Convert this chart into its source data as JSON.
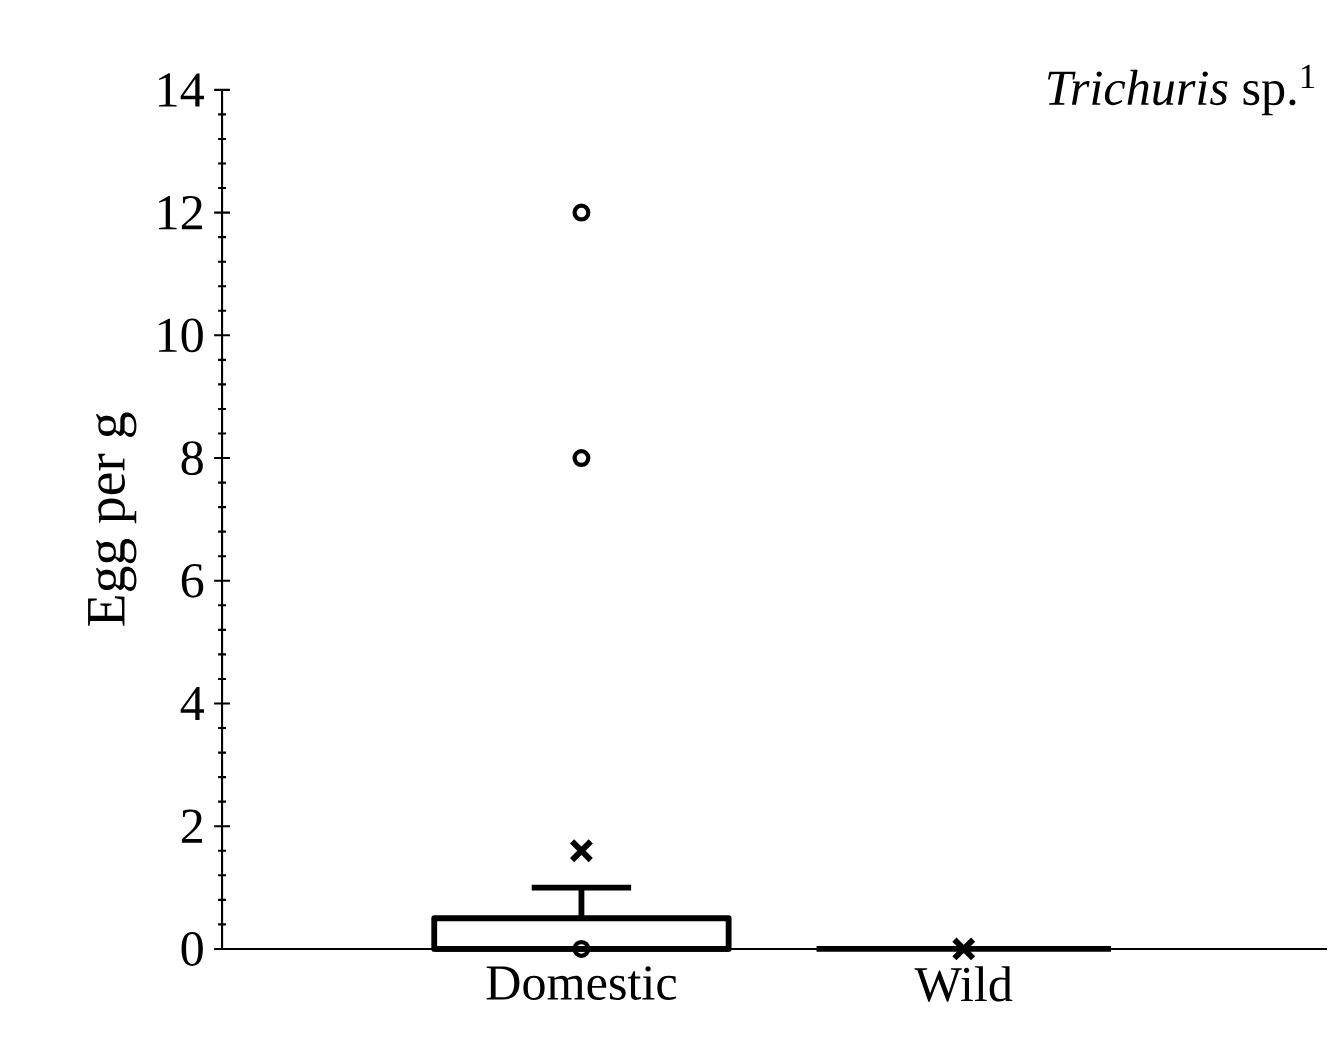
{
  "chart_data": {
    "type": "box",
    "title": "*Trichuris* sp.$^{1}$",
    "ylabel": "Egg per g",
    "categories": [
      "Domestic",
      "Wild"
    ],
    "boxes": [
      {
        "low": 0,
        "q1": 0,
        "median": 0,
        "q3": 0.5,
        "high": 1.0,
        "mean": 1.6,
        "outliers": [
          0,
          8,
          12
        ]
      },
      {
        "low": 0,
        "q1": 0,
        "median": 0,
        "q3": 0,
        "high": 0,
        "mean": 0
      }
    ],
    "ylim": [
      0,
      14
    ],
    "yticks": [
      0,
      2,
      4,
      6,
      8,
      10,
      12,
      14
    ],
    "color": "#000000",
    "grid": false
  }
}
